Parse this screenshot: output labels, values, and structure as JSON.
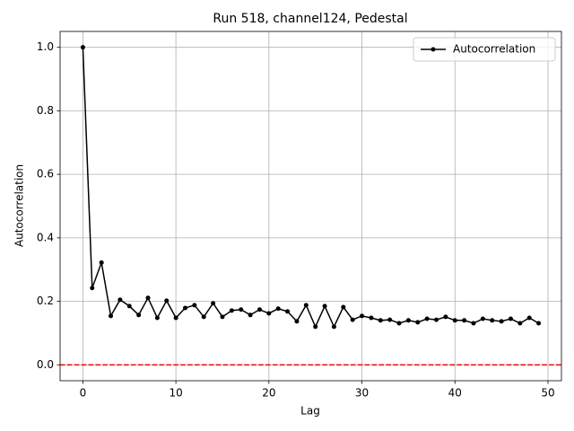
{
  "chart_data": {
    "type": "line",
    "title": "Run 518, channel124, Pedestal",
    "x_label": "Lag",
    "y_label": "Autocorrelation",
    "x": [
      0,
      1,
      2,
      3,
      4,
      5,
      6,
      7,
      8,
      9,
      10,
      11,
      12,
      13,
      14,
      15,
      16,
      17,
      18,
      19,
      20,
      21,
      22,
      23,
      24,
      25,
      26,
      27,
      28,
      29,
      30,
      31,
      32,
      33,
      34,
      35,
      36,
      37,
      38,
      39,
      40,
      41,
      42,
      43,
      44,
      45,
      46,
      47,
      48,
      49
    ],
    "series": [
      {
        "name": "Autocorrelation",
        "color": "#000000",
        "values": [
          1.0,
          0.242,
          0.322,
          0.154,
          0.205,
          0.185,
          0.157,
          0.211,
          0.148,
          0.202,
          0.148,
          0.179,
          0.188,
          0.151,
          0.194,
          0.151,
          0.171,
          0.174,
          0.157,
          0.174,
          0.162,
          0.177,
          0.168,
          0.137,
          0.188,
          0.12,
          0.185,
          0.12,
          0.182,
          0.142,
          0.154,
          0.148,
          0.14,
          0.142,
          0.131,
          0.14,
          0.134,
          0.145,
          0.142,
          0.151,
          0.14,
          0.14,
          0.131,
          0.145,
          0.14,
          0.137,
          0.145,
          0.131,
          0.148,
          0.131
        ]
      }
    ],
    "reference_line": {
      "value": 0,
      "color": "#ff0000"
    },
    "xlim": [
      -2.45,
      51.45
    ],
    "xticks": [
      0,
      10,
      20,
      30,
      40,
      50
    ],
    "ylim": [
      -0.05,
      1.05
    ],
    "yticks": [
      {
        "value": 0,
        "label": "0.0"
      },
      {
        "value": 0.2,
        "label": "0.2"
      },
      {
        "value": 0.4,
        "label": "0.4"
      },
      {
        "value": 0.6,
        "label": "0.6"
      },
      {
        "value": 0.8,
        "label": "0.8"
      },
      {
        "value": 1,
        "label": "1.0"
      }
    ],
    "grid": true,
    "legend": "upper right"
  }
}
